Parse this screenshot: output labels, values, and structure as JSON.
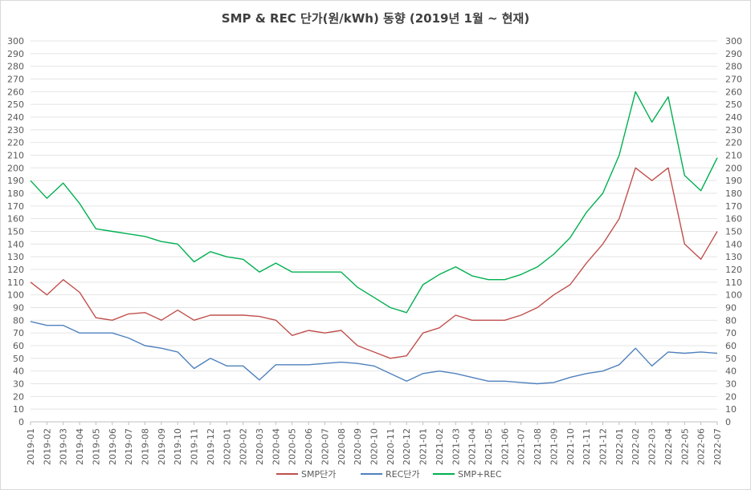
{
  "chart_data": {
    "type": "line",
    "title": "SMP & REC 단가(원/kWh) 동향 (2019년 1월 ~ 현재)",
    "xlabel": "",
    "ylabel": "",
    "ylim": [
      0,
      300
    ],
    "y_ticks": [
      "0",
      "10",
      "20",
      "30",
      "40",
      "50",
      "60",
      "70",
      "80",
      "90",
      "100",
      "110",
      "120",
      "130",
      "140",
      "150",
      "160",
      "170",
      "180",
      "190",
      "200",
      "210",
      "220",
      "230",
      "240",
      "250",
      "260",
      "270",
      "280",
      "290",
      "300"
    ],
    "secondary_ylim": [
      0,
      300
    ],
    "categories": [
      "2019-01",
      "2019-02",
      "2019-03",
      "2019-04",
      "2019-05",
      "2019-06",
      "2019-07",
      "2019-08",
      "2019-09",
      "2019-10",
      "2019-11",
      "2019-12",
      "2020-01",
      "2020-02",
      "2020-03",
      "2020-04",
      "2020-05",
      "2020-06",
      "2020-07",
      "2020-08",
      "2020-09",
      "2020-10",
      "2020-11",
      "2020-12",
      "2021-01",
      "2021-02",
      "2021-03",
      "2021-04",
      "2021-05",
      "2021-06",
      "2021-07",
      "2021-08",
      "2021-09",
      "2021-10",
      "2021-11",
      "2021-12",
      "2022-01",
      "2022-02",
      "2022-03",
      "2022-04",
      "2022-05",
      "2022-06",
      "2022-07"
    ],
    "grid": true,
    "legend_position": "bottom",
    "series": [
      {
        "name": "SMP단가",
        "color": "#c0504d",
        "values": [
          110,
          100,
          112,
          102,
          82,
          80,
          85,
          86,
          80,
          88,
          80,
          84,
          84,
          84,
          83,
          80,
          68,
          72,
          70,
          72,
          60,
          55,
          50,
          52,
          70,
          74,
          84,
          80,
          80,
          80,
          84,
          90,
          100,
          108,
          125,
          140,
          160,
          200,
          190,
          200,
          140,
          128,
          150
        ]
      },
      {
        "name": "REC단가",
        "color": "#4f81bd",
        "values": [
          79,
          76,
          76,
          70,
          70,
          70,
          66,
          60,
          58,
          55,
          42,
          50,
          44,
          44,
          33,
          45,
          45,
          45,
          46,
          47,
          46,
          44,
          38,
          32,
          38,
          40,
          38,
          35,
          32,
          32,
          31,
          30,
          31,
          35,
          38,
          40,
          45,
          58,
          44,
          55,
          54,
          55,
          54
        ]
      },
      {
        "name": "SMP+REC",
        "color": "#00b050",
        "values": [
          190,
          176,
          188,
          172,
          152,
          150,
          148,
          146,
          142,
          140,
          126,
          134,
          130,
          128,
          118,
          125,
          118,
          118,
          118,
          118,
          106,
          98,
          90,
          86,
          108,
          116,
          122,
          115,
          112,
          112,
          116,
          122,
          132,
          145,
          165,
          180,
          210,
          260,
          236,
          256,
          194,
          182,
          208
        ]
      }
    ]
  }
}
